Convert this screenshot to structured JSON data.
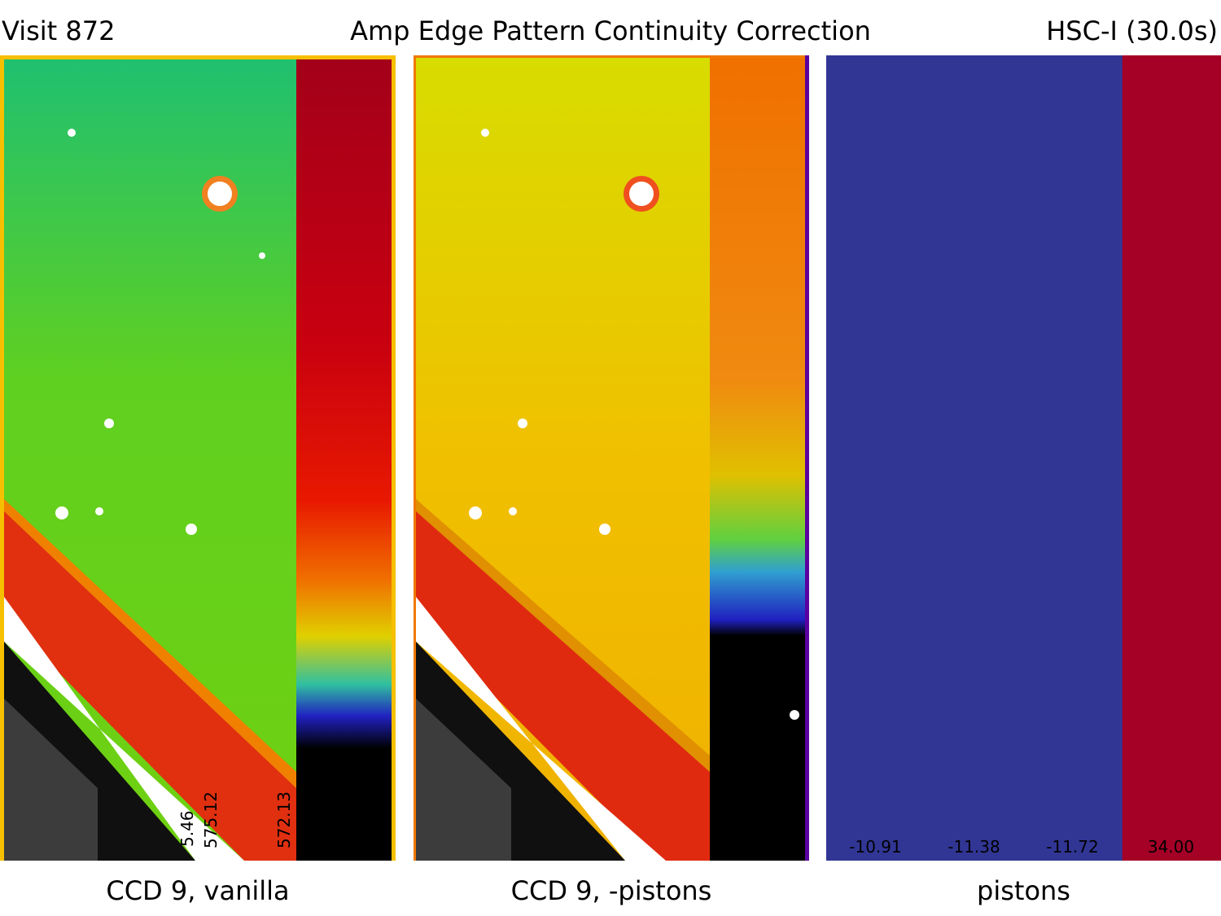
{
  "header": {
    "visit": "Visit 872",
    "title": "Amp Edge Pattern Continuity Correction",
    "filter": "HSC-I (30.0s)"
  },
  "panels": [
    {
      "caption": "CCD 9, vanilla",
      "amp_values": [
        "5.46",
        "575.12",
        "572.13"
      ]
    },
    {
      "caption": "CCD 9, -pistons"
    },
    {
      "caption": "pistons",
      "pistons": [
        {
          "label": "-10.91",
          "value": -10.91,
          "color": "#313695"
        },
        {
          "label": "-11.38",
          "value": -11.38,
          "color": "#313695"
        },
        {
          "label": "-11.72",
          "value": -11.72,
          "color": "#313695"
        },
        {
          "label": "34.00",
          "value": 34.0,
          "color": "#a50026"
        }
      ]
    }
  ],
  "colors": {
    "green": "#4fcf1e",
    "yellow": "#f2d000",
    "orange": "#f07800",
    "red": "#d81a0a",
    "dark_red": "#a0000e",
    "white": "#ffffff",
    "black": "#000000"
  }
}
